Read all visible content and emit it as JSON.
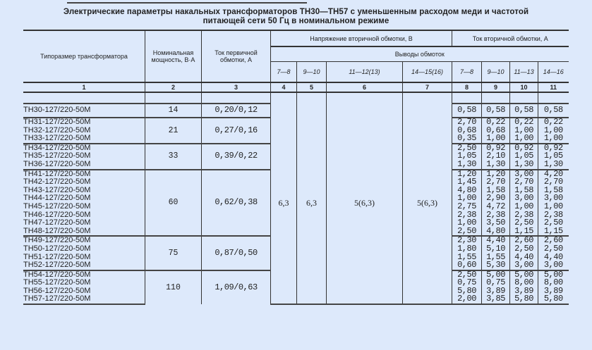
{
  "title_line1": "Электрические параметры накальных трансформаторов ТН30—ТН57 с уменьшенным расходом меди и частотой",
  "title_line2": "питающей сети 50 Гц в номинальном режиме",
  "headers": {
    "type": "Типоразмер трансформатора",
    "power": "Номинальная мощность, В·А",
    "primary_current": "Ток первичной обмотки, А",
    "secondary_voltage": "Напряжение вторичной обмотки, В",
    "secondary_current": "Ток вторичной обмотки, А",
    "terminals": "Выводы обмоток",
    "voltage_terminals": [
      "7—8",
      "9—10",
      "11—12(13)",
      "14—15(16)"
    ],
    "current_terminals": [
      "7—8",
      "9—10",
      "11—13",
      "14—16"
    ],
    "column_numbers": [
      "1",
      "2",
      "3",
      "4",
      "5",
      "6",
      "7",
      "8",
      "9",
      "10",
      "11"
    ]
  },
  "voltages": [
    "6,3",
    "6,3",
    "5(6,3)",
    "5(6,3)"
  ],
  "groups": [
    {
      "power": "14",
      "primary_current": "0,20/0,12",
      "rows": [
        {
          "model": "ТН30-127/220-50М",
          "currents": [
            "0,58",
            "0,58",
            "0,58",
            "0,58"
          ]
        }
      ]
    },
    {
      "power": "21",
      "primary_current": "0,27/0,16",
      "rows": [
        {
          "model": "ТН31-127/220-50М",
          "currents": [
            "2,70",
            "0,22",
            "0,22",
            "0,22"
          ]
        },
        {
          "model": "ТН32-127/220-50М",
          "currents": [
            "0,68",
            "0,68",
            "1,00",
            "1,00"
          ]
        },
        {
          "model": "ТН33-127/220-50М",
          "currents": [
            "0,35",
            "1,00",
            "1,00",
            "1,00"
          ]
        }
      ]
    },
    {
      "power": "33",
      "primary_current": "0,39/0,22",
      "rows": [
        {
          "model": "ТН34-127/220-50М",
          "currents": [
            "2,50",
            "0,92",
            "0,92",
            "0,92"
          ]
        },
        {
          "model": "ТН35-127/220-50М",
          "currents": [
            "1,05",
            "2,10",
            "1,05",
            "1,05"
          ]
        },
        {
          "model": "ТН36-127/220-50М",
          "currents": [
            "1,30",
            "1,30",
            "1,30",
            "1,30"
          ]
        }
      ]
    },
    {
      "power": "60",
      "primary_current": "0,62/0,38",
      "rows": [
        {
          "model": "ТН41-127/220-50М",
          "currents": [
            "1,20",
            "1,20",
            "3,00",
            "4,20"
          ]
        },
        {
          "model": "ТН42-127/220-50М",
          "currents": [
            "1,45",
            "2,70",
            "2,70",
            "2,70"
          ]
        },
        {
          "model": "ТН43-127/220-50М",
          "currents": [
            "4,80",
            "1,58",
            "1,58",
            "1,58"
          ]
        },
        {
          "model": "ТН44-127/220-50М",
          "currents": [
            "1,00",
            "2,90",
            "3,00",
            "3,00"
          ]
        },
        {
          "model": "ТН45-127/220-50М",
          "currents": [
            "2,75",
            "4,72",
            "1,00",
            "1,00"
          ]
        },
        {
          "model": "ТН46-127/220-50М",
          "currents": [
            "2,38",
            "2,38",
            "2,38",
            "2,38"
          ]
        },
        {
          "model": "ТН47-127/220-50М",
          "currents": [
            "1,00",
            "3,50",
            "2,50",
            "2,50"
          ]
        },
        {
          "model": "ТН48-127/220-50М",
          "currents": [
            "2,50",
            "4,80",
            "1,15",
            "1,15"
          ]
        }
      ]
    },
    {
      "power": "75",
      "primary_current": "0,87/0,50",
      "rows": [
        {
          "model": "ТН49-127/220-50М",
          "currents": [
            "2,30",
            "4,40",
            "2,60",
            "2,60"
          ]
        },
        {
          "model": "ТН50-127/220-50М",
          "currents": [
            "1,80",
            "5,10",
            "2,50",
            "2,50"
          ]
        },
        {
          "model": "ТН51-127/220-50М",
          "currents": [
            "1,55",
            "1,55",
            "4,40",
            "4,40"
          ]
        },
        {
          "model": "ТН52-127/220-50М",
          "currents": [
            "0,60",
            "5,30",
            "3,00",
            "3,00"
          ]
        }
      ]
    },
    {
      "power": "110",
      "primary_current": "1,09/0,63",
      "rows": [
        {
          "model": "ТН54-127/220-50М",
          "currents": [
            "2,50",
            "5,00",
            "5,00",
            "5,00"
          ]
        },
        {
          "model": "ТН55-127/220-50М",
          "currents": [
            "0,75",
            "0,75",
            "8,00",
            "8,00"
          ]
        },
        {
          "model": "ТН56-127/220-50М",
          "currents": [
            "5,80",
            "3,89",
            "3,89",
            "3,89"
          ]
        },
        {
          "model": "ТН57-127/220-50М",
          "currents": [
            "2,00",
            "3,85",
            "5,80",
            "5,80"
          ]
        }
      ]
    }
  ]
}
